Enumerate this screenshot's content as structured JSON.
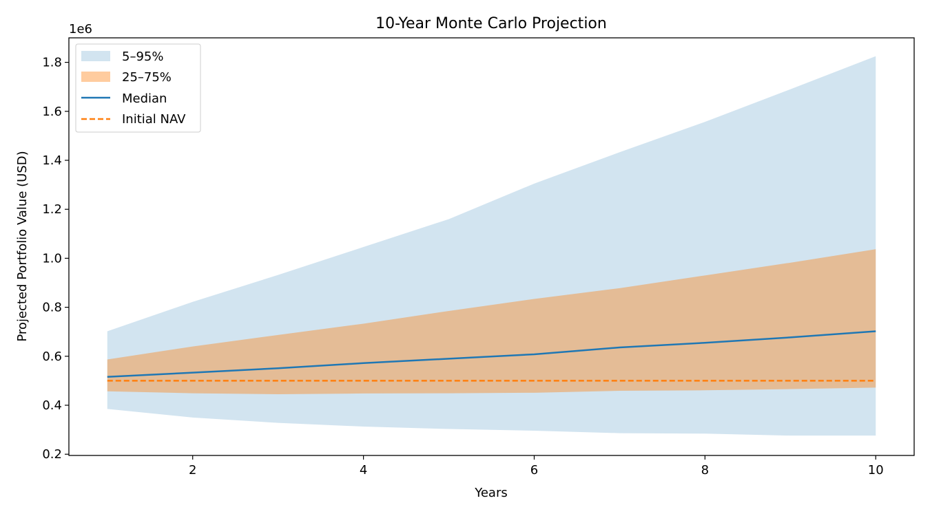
{
  "chart_data": {
    "type": "area",
    "title": "10-Year Monte Carlo Projection",
    "xlabel": "Years",
    "ylabel": "Projected Portfolio Value (USD)",
    "y_offset_text": "1e6",
    "x": [
      1,
      2,
      3,
      4,
      5,
      6,
      7,
      8,
      9,
      10
    ],
    "xlim": [
      0.55,
      10.45
    ],
    "ylim": [
      195000,
      1900000
    ],
    "x_ticks": [
      2,
      4,
      6,
      8,
      10
    ],
    "y_ticks": [
      200000,
      400000,
      600000,
      800000,
      1000000,
      1200000,
      1400000,
      1600000,
      1800000
    ],
    "y_tick_labels": [
      "0.2",
      "0.4",
      "0.6",
      "0.8",
      "1.0",
      "1.2",
      "1.4",
      "1.6",
      "1.8"
    ],
    "grid": false,
    "legend_position": "top-left",
    "bands": [
      {
        "name": "5–95%",
        "color": "#1f77b4",
        "opacity": 0.2,
        "lower": [
          385000,
          350000,
          328000,
          313000,
          303000,
          296000,
          286000,
          284000,
          276000,
          276000
        ],
        "upper": [
          702000,
          822000,
          932000,
          1046000,
          1160000,
          1305000,
          1433000,
          1557000,
          1690000,
          1825000
        ]
      },
      {
        "name": "25–75%",
        "color": "#ff7f0e",
        "opacity": 0.4,
        "lower": [
          457000,
          449000,
          445000,
          448000,
          449000,
          451000,
          459000,
          461000,
          466000,
          472000
        ],
        "upper": [
          587000,
          640000,
          687000,
          733000,
          785000,
          834000,
          878000,
          930000,
          982000,
          1037000
        ]
      }
    ],
    "series": [
      {
        "name": "Median",
        "color": "#1f77b4",
        "style": "solid",
        "values": [
          516000,
          533000,
          551000,
          572000,
          590000,
          608000,
          636000,
          655000,
          677000,
          702000
        ]
      },
      {
        "name": "Initial NAV",
        "color": "#ff7f0e",
        "style": "dashed",
        "values": [
          500000,
          500000,
          500000,
          500000,
          500000,
          500000,
          500000,
          500000,
          500000,
          500000
        ]
      }
    ]
  }
}
